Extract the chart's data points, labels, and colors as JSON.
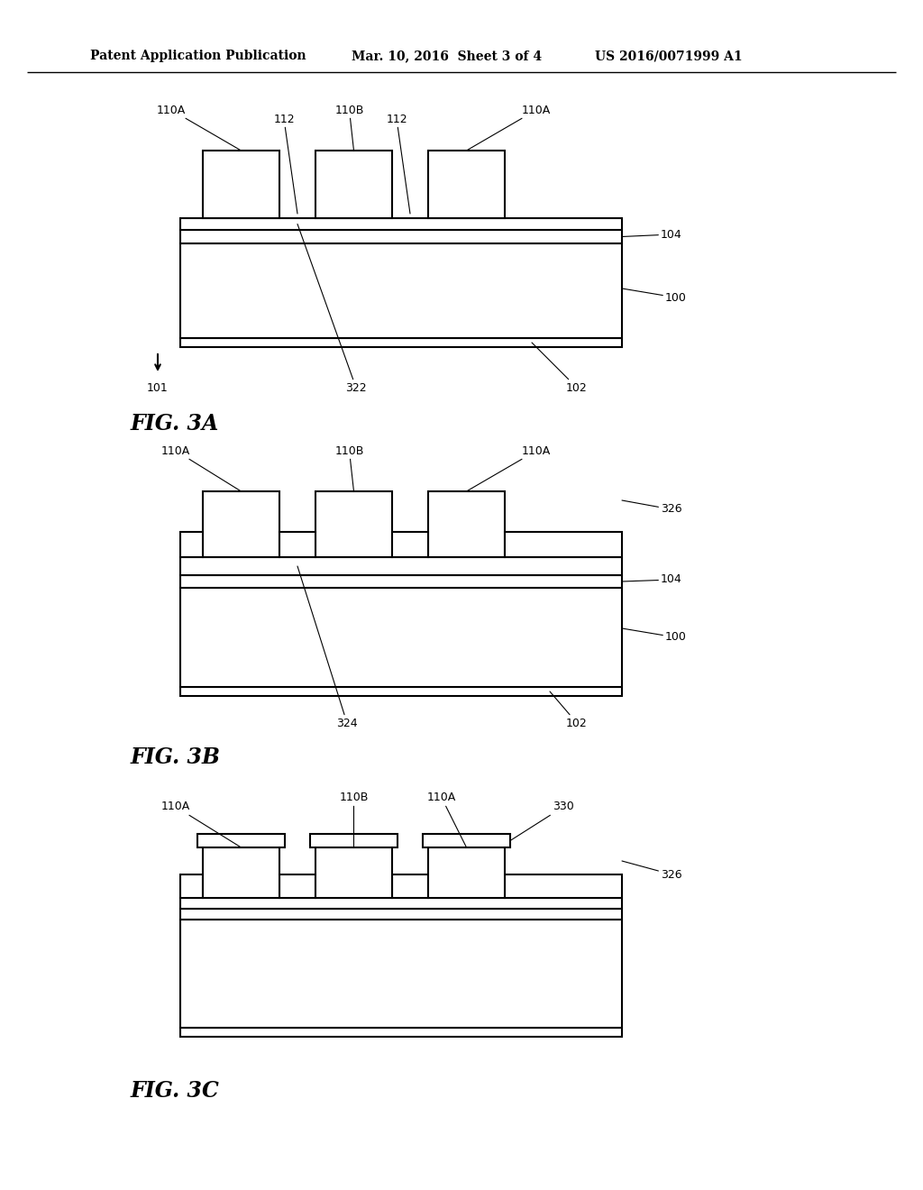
{
  "title_left": "Patent Application Publication",
  "title_mid": "Mar. 10, 2016  Sheet 3 of 4",
  "title_right": "US 2016/0071999 A1",
  "fig3a_label": "FIG. 3A",
  "fig3b_label": "FIG. 3B",
  "fig3c_label": "FIG. 3C",
  "bg_color": "#ffffff",
  "line_color": "#000000"
}
